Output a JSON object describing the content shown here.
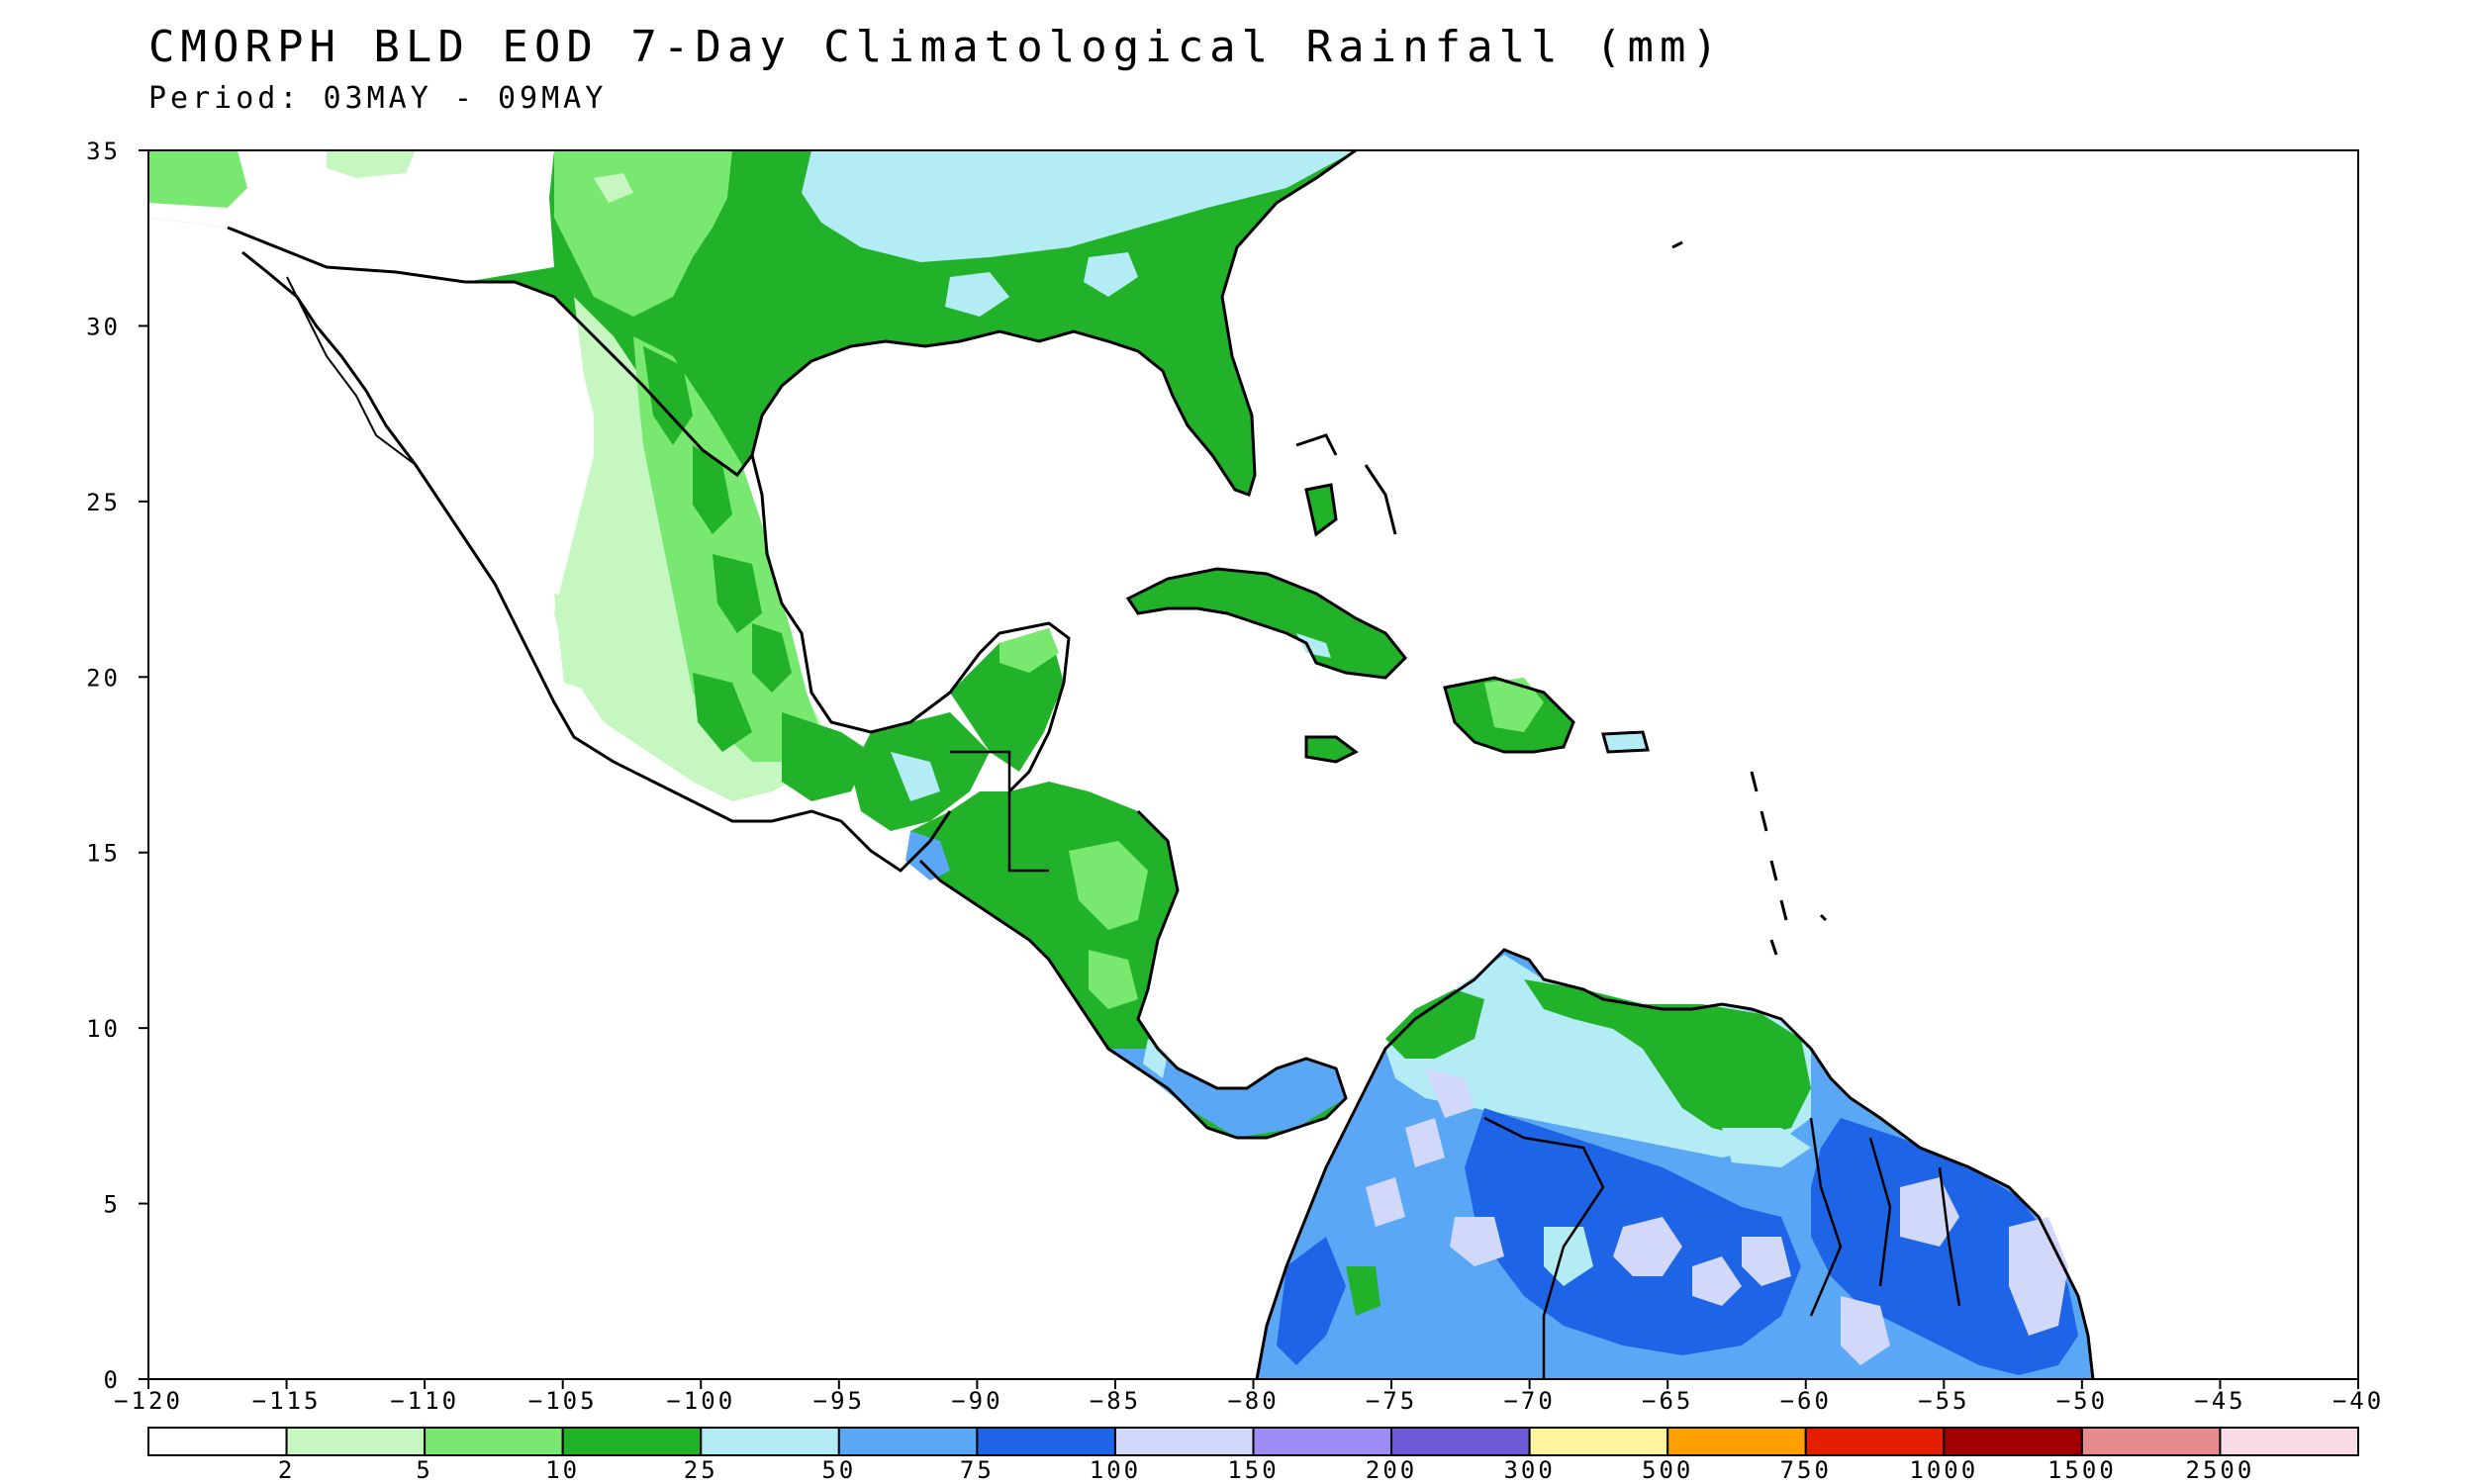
{
  "title": "CMORPH BLD EOD 7-Day Climatological Rainfall (mm)",
  "subtitle": "Period: 03MAY - 09MAY",
  "axes": {
    "lon_ticks": [
      "-120",
      "-115",
      "-110",
      "-105",
      "-100",
      "-95",
      "-90",
      "-85",
      "-80",
      "-75",
      "-70",
      "-65",
      "-60",
      "-55",
      "-50",
      "-45",
      "-40"
    ],
    "lat_ticks": [
      "0",
      "5",
      "10",
      "15",
      "20",
      "25",
      "30",
      "35"
    ],
    "lon_range": [
      -120,
      -40
    ],
    "lat_range": [
      0,
      35
    ]
  },
  "legend": {
    "colors": [
      "#ffffff",
      "#c6f7c0",
      "#78e870",
      "#22b22a",
      "#b4ecf5",
      "#5aa8f5",
      "#1e64e6",
      "#d2d8fa",
      "#a08cf5",
      "#6e5ad7",
      "#fff5a0",
      "#ffa000",
      "#e61e00",
      "#a00000",
      "#e68c8c",
      "#fadce6"
    ],
    "labels": [
      "2",
      "5",
      "10",
      "25",
      "50",
      "75",
      "100",
      "150",
      "200",
      "300",
      "500",
      "750",
      "1000",
      "1500",
      "2500"
    ]
  },
  "palette": {
    "light_green": "#c6f7c0",
    "mid_green": "#78e870",
    "dark_green": "#22b22a",
    "light_cyan": "#b4ecf5",
    "mid_blue": "#5aa8f5",
    "dark_blue": "#1e64e6",
    "lavender": "#d2d8fa"
  }
}
